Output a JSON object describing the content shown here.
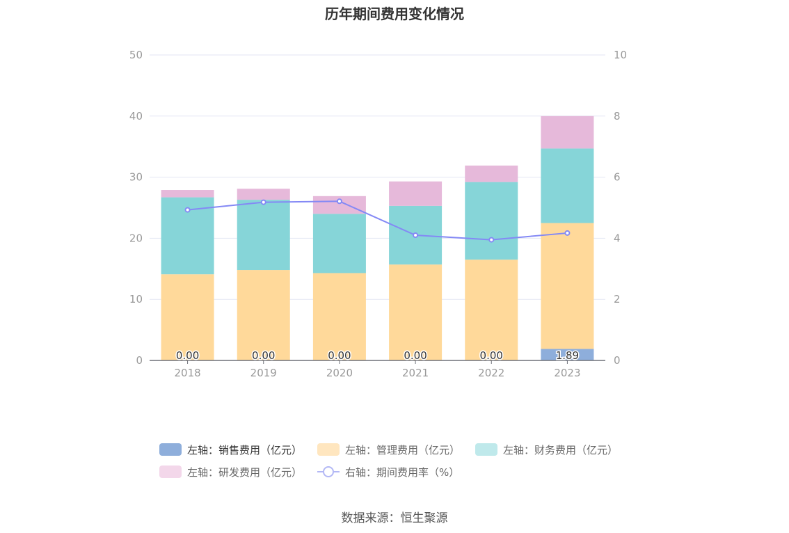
{
  "chart_data": {
    "type": "bar",
    "title": "历年期间费用变化情况",
    "categories": [
      "2018",
      "2019",
      "2020",
      "2021",
      "2022",
      "2023"
    ],
    "series": [
      {
        "name": "左轴：销售费用（亿元）",
        "axis": "left",
        "kind": "bar",
        "color": "#8eaedb",
        "values": [
          0.0,
          0.0,
          0.0,
          0.0,
          0.0,
          1.89
        ],
        "labels": [
          "0.00",
          "0.00",
          "0.00",
          "0.00",
          "0.00",
          "1.89"
        ]
      },
      {
        "name": "左轴：管理费用（亿元）",
        "axis": "left",
        "kind": "bar",
        "color": "#ffd99a",
        "values": [
          14.1,
          14.8,
          14.3,
          15.7,
          16.5,
          20.6
        ]
      },
      {
        "name": "左轴：财务费用（亿元）",
        "axis": "left",
        "kind": "bar",
        "color": "#86d5d8",
        "values": [
          12.6,
          11.5,
          9.7,
          9.6,
          12.7,
          12.2
        ]
      },
      {
        "name": "左轴：研发费用（亿元）",
        "axis": "left",
        "kind": "bar",
        "color": "#e6b9da",
        "values": [
          1.2,
          1.8,
          2.9,
          4.0,
          2.7,
          5.3
        ]
      },
      {
        "name": "右轴：期间费用率（%）",
        "axis": "right",
        "kind": "line",
        "color": "#8489f5",
        "values": [
          4.93,
          5.18,
          5.21,
          4.1,
          3.95,
          4.17
        ]
      }
    ],
    "left_axis": {
      "min": 0,
      "max": 50,
      "ticks": [
        "0",
        "10",
        "20",
        "30",
        "40",
        "50"
      ]
    },
    "right_axis": {
      "min": 0,
      "max": 10,
      "ticks": [
        "0",
        "2",
        "4",
        "6",
        "8",
        "10"
      ]
    },
    "grid": true,
    "legend_position": "bottom"
  },
  "legend": {
    "sales": "左轴：销售费用（亿元）",
    "admin": "左轴：管理费用（亿元）",
    "finance": "左轴：财务费用（亿元）",
    "rnd": "左轴：研发费用（亿元）",
    "rate": "右轴：期间费用率（%）"
  },
  "colors": {
    "sales": "#8eaedb",
    "admin": "#ffe6bf",
    "finance": "#bfe9eb",
    "rnd": "#f3d7ea"
  },
  "source": "数据来源：恒生聚源"
}
